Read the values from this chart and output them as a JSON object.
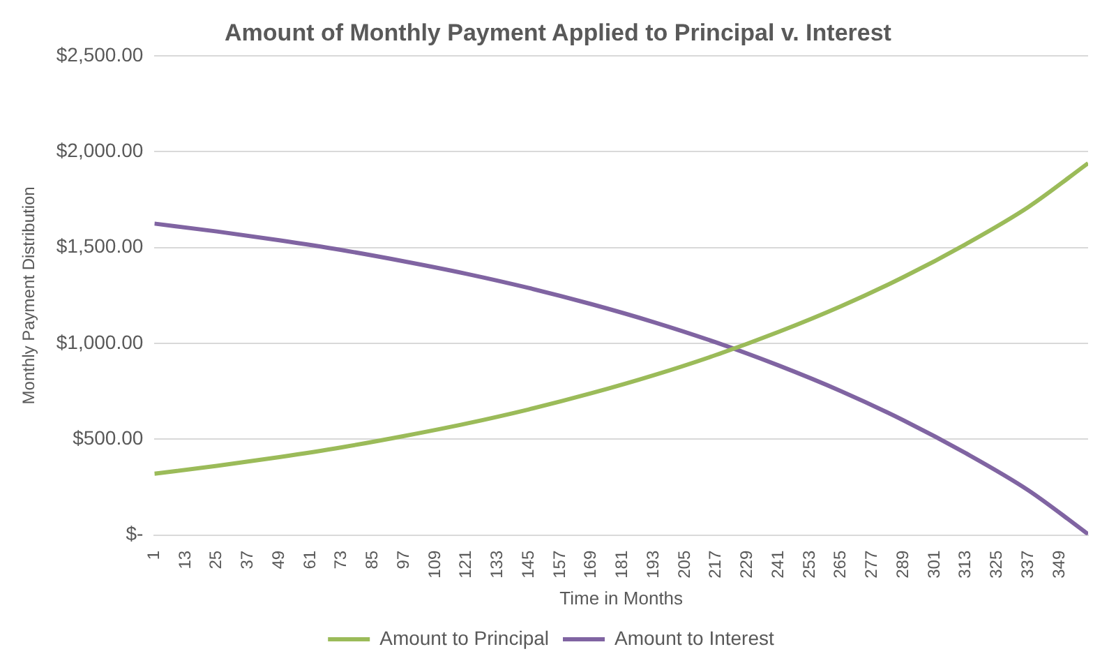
{
  "chart_data": {
    "type": "line",
    "title": "Amount of Monthly Payment Applied to Principal v. Interest",
    "xlabel": "Time in Months",
    "ylabel": "Monthly Payment Distribution",
    "x": [
      1,
      25,
      49,
      73,
      97,
      121,
      145,
      169,
      193,
      217,
      241,
      265,
      289,
      313,
      337,
      360
    ],
    "series": [
      {
        "name": "Amount to Principal",
        "color": "#9bbb59",
        "values": [
          320,
          361,
          407,
          458,
          517,
          582,
          656,
          740,
          834,
          940,
          1060,
          1194,
          1346,
          1518,
          1711,
          1940
        ]
      },
      {
        "name": "Amount to Interest",
        "color": "#8064a2",
        "values": [
          1625,
          1584,
          1538,
          1487,
          1428,
          1363,
          1289,
          1205,
          1111,
          1005,
          885,
          751,
          599,
          427,
          234,
          5
        ]
      }
    ],
    "xlim": [
      1,
      360
    ],
    "xticks": [
      1,
      13,
      25,
      37,
      49,
      61,
      73,
      85,
      97,
      109,
      121,
      133,
      145,
      157,
      169,
      181,
      193,
      205,
      217,
      229,
      241,
      253,
      265,
      277,
      289,
      301,
      313,
      325,
      337,
      349
    ],
    "ylim": [
      0,
      2500
    ],
    "yticks": [
      {
        "value": 0,
        "label": "$-"
      },
      {
        "value": 500,
        "label": "$500.00"
      },
      {
        "value": 1000,
        "label": "$1,000.00"
      },
      {
        "value": 1500,
        "label": "$1,500.00"
      },
      {
        "value": 2000,
        "label": "$2,000.00"
      },
      {
        "value": 2500,
        "label": "$2,500.00"
      }
    ],
    "grid": "y",
    "legend": "bottom",
    "marker": "none",
    "line_style": "solid"
  }
}
